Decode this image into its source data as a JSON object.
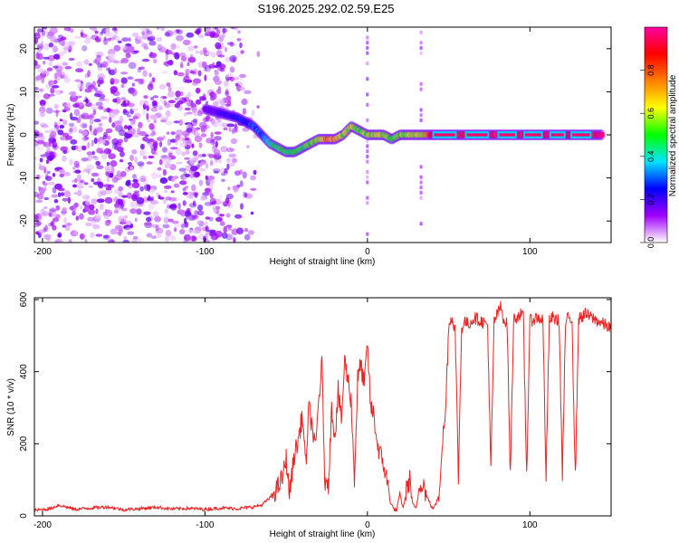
{
  "page_title": "S196.2025.292.02.59.E25",
  "chart_data": [
    {
      "type": "heatmap",
      "title": "S196.2025.292.02.59.E25",
      "xlabel": "Height of straight line (km)",
      "ylabel": "Frequency (Hz)",
      "xlim": [
        -205,
        150
      ],
      "ylim": [
        -25,
        25
      ],
      "xticks": [
        -200,
        -100,
        0,
        100
      ],
      "yticks": [
        -20,
        -10,
        0,
        10,
        20
      ],
      "colorbar": {
        "label": "Normalized spectral amplitude",
        "range": [
          0,
          1
        ],
        "ticks": [
          "0.0",
          "0.2",
          "0.4",
          "0.6",
          "0.8"
        ],
        "colors": [
          "#ffffff",
          "#a000ff",
          "#0000ff",
          "#00e5ff",
          "#00ff00",
          "#ffff00",
          "#ff8000",
          "#ff0000",
          "#ff00a0"
        ]
      },
      "noise_region": {
        "x_from": -205,
        "x_to": -65,
        "level": "low (0.0-0.2)"
      },
      "frequency_track": {
        "x": [
          -100,
          -90,
          -80,
          -75,
          -70,
          -65,
          -60,
          -55,
          -50,
          -45,
          -40,
          -35,
          -30,
          -25,
          -20,
          -15,
          -10,
          -5,
          0,
          5,
          10,
          15,
          20,
          25,
          30,
          35,
          40,
          145
        ],
        "y": [
          6,
          5,
          4,
          3,
          2,
          0,
          -2,
          -3,
          -4,
          -4,
          -3,
          -2,
          -1,
          -1,
          -1,
          0,
          2,
          1,
          0,
          0,
          0,
          -1,
          0,
          0,
          0,
          0,
          0,
          0
        ],
        "amplitude": [
          0.15,
          0.2,
          0.25,
          0.25,
          0.3,
          0.3,
          0.4,
          0.5,
          0.5,
          0.5,
          0.5,
          0.55,
          0.6,
          0.75,
          0.75,
          0.6,
          0.6,
          0.55,
          0.6,
          0.6,
          0.6,
          0.5,
          0.55,
          0.6,
          0.6,
          0.65,
          0.95,
          0.95
        ]
      },
      "carrier_segments_x": [
        [
          40,
          55
        ],
        [
          60,
          75
        ],
        [
          80,
          92
        ],
        [
          96,
          108
        ],
        [
          112,
          122
        ],
        [
          125,
          138
        ]
      ],
      "vertical_streaks_x": [
        0,
        33
      ]
    },
    {
      "type": "line",
      "title": "",
      "xlabel": "Height of straight line (km)",
      "ylabel": "SNR (10 * v/v)",
      "xlim": [
        -205,
        150
      ],
      "ylim": [
        0,
        605
      ],
      "xticks": [
        -200,
        -100,
        0,
        100
      ],
      "yticks": [
        0,
        200,
        400,
        600
      ],
      "color": "#ee2222",
      "series": [
        {
          "name": "SNR",
          "x": [
            -205,
            -195,
            -190,
            -180,
            -170,
            -160,
            -150,
            -140,
            -130,
            -120,
            -110,
            -100,
            -90,
            -80,
            -70,
            -65,
            -60,
            -55,
            -52,
            -50,
            -48,
            -45,
            -43,
            -40,
            -38,
            -36,
            -34,
            -32,
            -30,
            -28,
            -26,
            -25,
            -24,
            -22,
            -20,
            -18,
            -16,
            -14,
            -12,
            -10,
            -8,
            -6,
            -4,
            -2,
            0,
            2,
            4,
            6,
            8,
            10,
            12,
            14,
            16,
            18,
            20,
            22,
            24,
            26,
            28,
            30,
            32,
            34,
            36,
            38,
            40,
            42,
            44,
            46,
            48,
            50,
            52,
            54,
            56,
            58,
            60,
            62,
            66,
            70,
            74,
            76,
            78,
            80,
            82,
            84,
            86,
            88,
            90,
            94,
            96,
            98,
            100,
            104,
            108,
            110,
            112,
            114,
            116,
            118,
            120,
            122,
            124,
            126,
            128,
            130,
            134,
            138,
            142,
            146,
            150
          ],
          "y": [
            15,
            20,
            30,
            18,
            22,
            25,
            17,
            20,
            24,
            19,
            21,
            18,
            22,
            20,
            25,
            30,
            50,
            80,
            110,
            160,
            60,
            170,
            200,
            280,
            140,
            300,
            250,
            180,
            320,
            420,
            60,
            110,
            90,
            300,
            220,
            350,
            260,
            430,
            380,
            320,
            100,
            380,
            420,
            360,
            480,
            300,
            280,
            200,
            170,
            140,
            100,
            40,
            20,
            15,
            60,
            20,
            70,
            100,
            30,
            20,
            80,
            100,
            60,
            40,
            20,
            30,
            60,
            200,
            280,
            530,
            550,
            520,
            110,
            520,
            540,
            530,
            550,
            540,
            530,
            120,
            540,
            560,
            580,
            545,
            530,
            100,
            545,
            560,
            550,
            110,
            540,
            550,
            545,
            110,
            540,
            550,
            545,
            540,
            110,
            540,
            550,
            545,
            100,
            545,
            560,
            550,
            540,
            530,
            520
          ]
        }
      ]
    }
  ]
}
